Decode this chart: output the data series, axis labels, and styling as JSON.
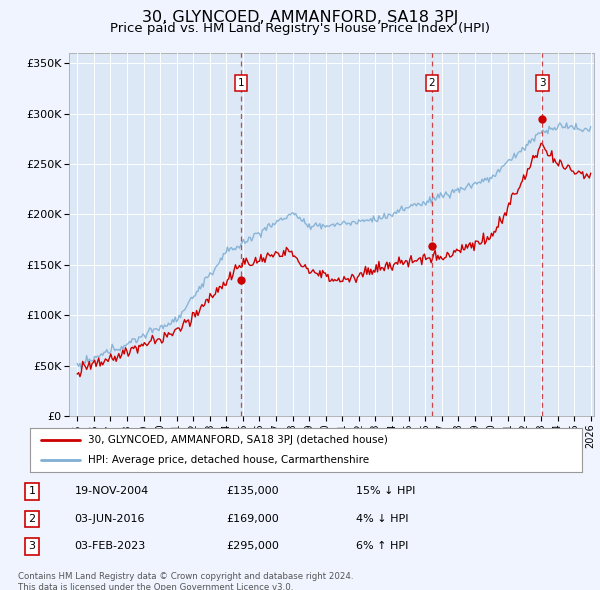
{
  "title": "30, GLYNCOED, AMMANFORD, SA18 3PJ",
  "subtitle": "Price paid vs. HM Land Registry's House Price Index (HPI)",
  "title_fontsize": 11.5,
  "subtitle_fontsize": 9.5,
  "background_color": "#f0f4ff",
  "plot_bg_color": "#dce8f5",
  "ylim": [
    0,
    360000
  ],
  "yticks": [
    0,
    50000,
    100000,
    150000,
    200000,
    250000,
    300000,
    350000
  ],
  "ytick_labels": [
    "£0",
    "£50K",
    "£100K",
    "£150K",
    "£200K",
    "£250K",
    "£300K",
    "£350K"
  ],
  "xlim_start": 1994.5,
  "xlim_end": 2026.2,
  "hatch_start": 2024.3,
  "sales": [
    {
      "year": 2004.9,
      "price": 135000,
      "label": "1",
      "date": "19-NOV-2004",
      "pct": "15%",
      "dir": "↓"
    },
    {
      "year": 2016.42,
      "price": 169000,
      "label": "2",
      "date": "03-JUN-2016",
      "pct": "4%",
      "dir": "↓"
    },
    {
      "year": 2023.09,
      "price": 295000,
      "label": "3",
      "date": "03-FEB-2023",
      "pct": "6%",
      "dir": "↑"
    }
  ],
  "red_line_color": "#cc0000",
  "blue_line_color": "#80afd4",
  "legend_red": "30, GLYNCOED, AMMANFORD, SA18 3PJ (detached house)",
  "legend_blue": "HPI: Average price, detached house, Carmarthenshire",
  "footer": "Contains HM Land Registry data © Crown copyright and database right 2024.\nThis data is licensed under the Open Government Licence v3.0."
}
